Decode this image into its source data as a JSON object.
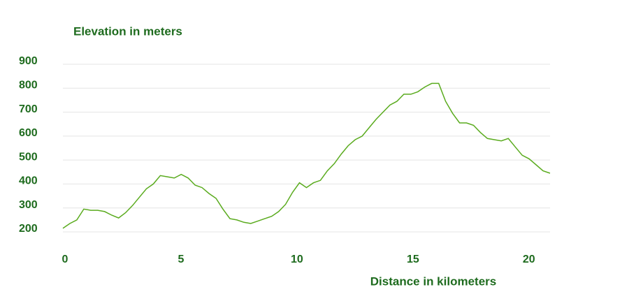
{
  "chart_data": {
    "type": "line",
    "title": "Elevation in meters",
    "x_label": "Distance in kilometers",
    "x": [
      0,
      0.3,
      0.6,
      0.9,
      1.2,
      1.5,
      1.8,
      2.1,
      2.4,
      2.7,
      3.0,
      3.3,
      3.6,
      3.9,
      4.2,
      4.5,
      4.8,
      5.1,
      5.4,
      5.7,
      6.0,
      6.3,
      6.6,
      6.9,
      7.2,
      7.5,
      7.8,
      8.1,
      8.4,
      8.7,
      9.0,
      9.3,
      9.6,
      9.9,
      10.2,
      10.5,
      10.8,
      11.1,
      11.4,
      11.7,
      12.0,
      12.3,
      12.6,
      12.9,
      13.2,
      13.5,
      13.8,
      14.1,
      14.4,
      14.7,
      15.0,
      15.3,
      15.6,
      15.9,
      16.2,
      16.5,
      16.8,
      17.1,
      17.4,
      17.7,
      18.0,
      18.3,
      18.6,
      18.9,
      19.2,
      19.5,
      19.8,
      20.1,
      20.4,
      20.7,
      21.0
    ],
    "series": [
      {
        "color": "#5aab1e",
        "values": [
          215,
          235,
          250,
          295,
          290,
          290,
          285,
          270,
          258,
          280,
          310,
          345,
          380,
          400,
          435,
          430,
          425,
          440,
          425,
          395,
          385,
          360,
          340,
          295,
          255,
          250,
          240,
          235,
          245,
          255,
          265,
          285,
          315,
          365,
          405,
          385,
          405,
          415,
          455,
          485,
          525,
          560,
          585,
          600,
          635,
          670,
          700,
          730,
          745,
          775,
          775,
          785,
          805,
          820,
          820,
          745,
          695,
          655,
          655,
          645,
          615,
          590,
          585,
          580,
          590,
          555,
          520,
          505,
          480,
          455,
          445
        ]
      }
    ],
    "xlim": [
      0,
      21
    ],
    "xticks": [
      0,
      5,
      10,
      15,
      20
    ],
    "ylim": [
      200,
      900
    ],
    "yticks": [
      200,
      300,
      400,
      500,
      600,
      700,
      800,
      900
    ],
    "grid": true,
    "label_color": "#1e6b1e"
  }
}
